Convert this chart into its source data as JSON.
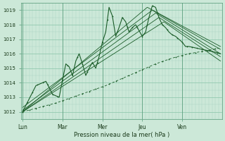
{
  "title": "",
  "xlabel": "Pression niveau de la mer( hPa )",
  "ylim": [
    1011.5,
    1019.5
  ],
  "yticks": [
    1012,
    1013,
    1014,
    1015,
    1016,
    1017,
    1018,
    1019
  ],
  "day_labels": [
    "Lun",
    "Mar",
    "Mer",
    "Jeu",
    "Ven"
  ],
  "day_positions": [
    0,
    24,
    48,
    72,
    96
  ],
  "bg_color": "#cce8d8",
  "grid_color_minor": "#aad4c0",
  "grid_color_major": "#88c4a8",
  "line_color": "#1a5c28",
  "total_hours": 120,
  "figsize": [
    3.2,
    2.0
  ],
  "dpi": 100
}
